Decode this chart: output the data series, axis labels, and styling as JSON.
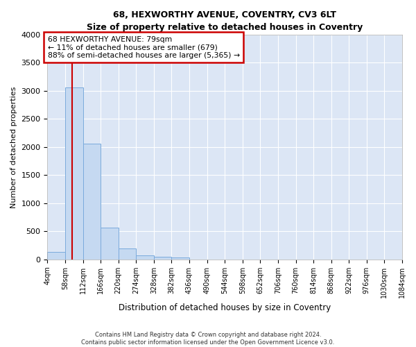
{
  "title": "68, HEXWORTHY AVENUE, COVENTRY, CV3 6LT",
  "subtitle": "Size of property relative to detached houses in Coventry",
  "xlabel": "Distribution of detached houses by size in Coventry",
  "ylabel": "Number of detached properties",
  "bin_labels": [
    "4sqm",
    "58sqm",
    "112sqm",
    "166sqm",
    "220sqm",
    "274sqm",
    "328sqm",
    "382sqm",
    "436sqm",
    "490sqm",
    "544sqm",
    "598sqm",
    "652sqm",
    "706sqm",
    "760sqm",
    "814sqm",
    "868sqm",
    "922sqm",
    "976sqm",
    "1030sqm",
    "1084sqm"
  ],
  "bar_values": [
    130,
    3060,
    2060,
    560,
    195,
    75,
    50,
    35,
    0,
    0,
    0,
    0,
    0,
    0,
    0,
    0,
    0,
    0,
    0,
    0
  ],
  "bar_color": "#c5d9f1",
  "bar_edge_color": "#7aaadc",
  "property_line_x": 79,
  "vline_color": "#cc0000",
  "annotation_text": "68 HEXWORTHY AVENUE: 79sqm\n← 11% of detached houses are smaller (679)\n88% of semi-detached houses are larger (5,365) →",
  "annotation_box_color": "#cc0000",
  "footer_line1": "Contains HM Land Registry data © Crown copyright and database right 2024.",
  "footer_line2": "Contains public sector information licensed under the Open Government Licence v3.0.",
  "ylim": [
    0,
    4000
  ],
  "fig_bg_color": "#ffffff",
  "axes_bg_color": "#dce6f5",
  "grid_color": "#ffffff",
  "bin_edges": [
    4,
    58,
    112,
    166,
    220,
    274,
    328,
    382,
    436,
    490,
    544,
    598,
    652,
    706,
    760,
    814,
    868,
    922,
    976,
    1030,
    1084
  ]
}
